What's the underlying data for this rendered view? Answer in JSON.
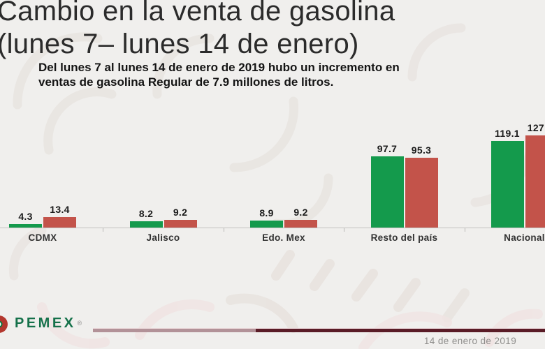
{
  "title": {
    "line1": "Cambio en la venta de gasolina",
    "line2": "(lunes 7– lunes 14 de enero)"
  },
  "subtitle": {
    "line1": "Del lunes 7 al lunes 14 de enero de 2019 hubo un incremento en",
    "line2": "ventas de gasolina Regular de 7.9 millones de litros."
  },
  "chart_data": {
    "type": "bar",
    "title": "Cambio en la venta de gasolina (lunes 7– lunes 14 de enero)",
    "unit": "millones de litros",
    "categories": [
      "CDMX",
      "Jalisco",
      "Edo. Mex",
      "Resto del país",
      "Nacional"
    ],
    "series": [
      {
        "name": "lunes 7",
        "color": "#149a4c",
        "values": [
          4.3,
          8.2,
          8.9,
          97.7,
          119.1
        ],
        "labels": [
          "4.3",
          "8.2",
          "8.9",
          "97.7",
          "119.1"
        ]
      },
      {
        "name": "lunes 14",
        "color": "#c3534a",
        "values": [
          13.4,
          9.2,
          9.2,
          95.3,
          127.0
        ],
        "labels": [
          "13.4",
          "9.2",
          "9.2",
          "95.3",
          "127"
        ]
      }
    ],
    "ylim": [
      0,
      140
    ],
    "grid": false,
    "legend_position": "none",
    "value_labels": true
  },
  "footer": {
    "brand": "PEMEX",
    "registered": "®",
    "date": "14 de enero de 2019"
  },
  "colors": {
    "background": "#f0efed",
    "bar_green": "#149a4c",
    "bar_red": "#c3534a",
    "axis": "#c2c1bf",
    "pemex_green": "#15714a",
    "rule_light": "#b29298",
    "rule_dark": "#5a1c27"
  }
}
